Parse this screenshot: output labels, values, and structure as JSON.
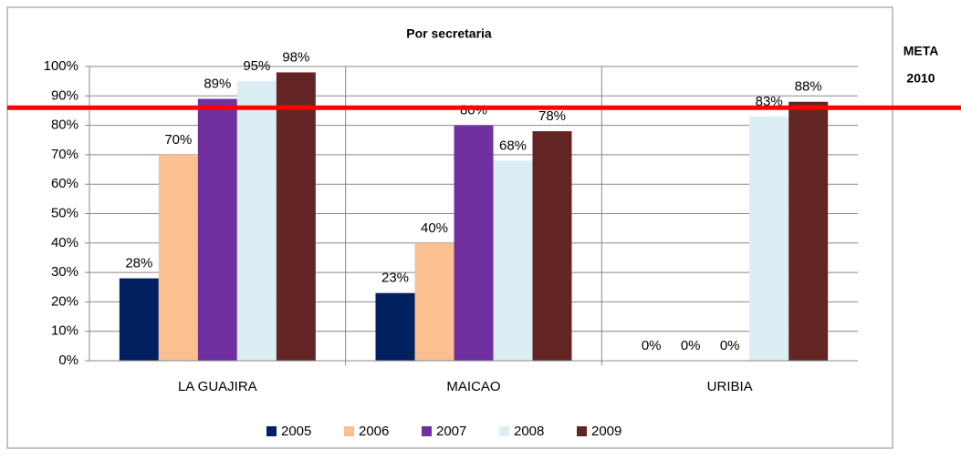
{
  "chart_data": {
    "type": "bar",
    "title": "Por secretaria",
    "categories": [
      "LA GUAJIRA",
      "MAICAO",
      "URIBIA"
    ],
    "series": [
      {
        "name": "2005",
        "color": "#002060",
        "values": [
          28,
          23,
          0
        ],
        "value_labels": [
          "28%",
          "23%",
          "0%"
        ]
      },
      {
        "name": "2006",
        "color": "#fac090",
        "values": [
          70,
          40,
          0
        ],
        "value_labels": [
          "70%",
          "40%",
          "0%"
        ]
      },
      {
        "name": "2007",
        "color": "#7030a0",
        "values": [
          89,
          80,
          0
        ],
        "value_labels": [
          "89%",
          "80%",
          "0%"
        ]
      },
      {
        "name": "2008",
        "color": "#dbeef4",
        "values": [
          95,
          68,
          83
        ],
        "value_labels": [
          "95%",
          "68%",
          "83%"
        ]
      },
      {
        "name": "2009",
        "color": "#632523",
        "values": [
          98,
          78,
          88
        ],
        "value_labels": [
          "98%",
          "78%",
          "88%"
        ]
      }
    ],
    "ylim": [
      0,
      100
    ],
    "yticks": [
      {
        "value": 0,
        "label": "0%"
      },
      {
        "value": 10,
        "label": "10%"
      },
      {
        "value": 20,
        "label": "20%"
      },
      {
        "value": 30,
        "label": "30%"
      },
      {
        "value": 40,
        "label": "40%"
      },
      {
        "value": 50,
        "label": "50%"
      },
      {
        "value": 60,
        "label": "60%"
      },
      {
        "value": 70,
        "label": "70%"
      },
      {
        "value": 80,
        "label": "80%"
      },
      {
        "value": 90,
        "label": "90%"
      },
      {
        "value": 100,
        "label": "100%"
      }
    ],
    "grid": true,
    "legend": "bottom",
    "target": {
      "value": 86,
      "label": [
        "META",
        "2010"
      ],
      "color": "#ff0000"
    }
  }
}
